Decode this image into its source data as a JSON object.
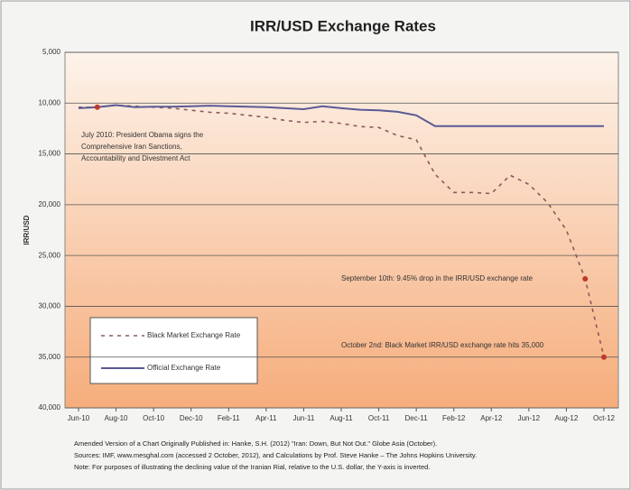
{
  "chart_data": {
    "type": "line",
    "title": "IRR/USD Exchange Rates",
    "y_label": "IRR/USD",
    "y_inverted": true,
    "grid": true,
    "legend_position": "lower left",
    "categories": [
      "Jun-10",
      null,
      "Aug-10",
      null,
      "Oct-10",
      null,
      "Dec-10",
      null,
      "Feb-11",
      null,
      "Apr-11",
      null,
      "Jun-11",
      null,
      "Aug-11",
      null,
      "Oct-11",
      null,
      "Dec-11",
      null,
      "Feb-12",
      null,
      "Apr-12",
      null,
      "Jun-12",
      null,
      "Aug-12",
      null,
      "Oct-12"
    ],
    "series": [
      {
        "name": "Black Market Exchange Rate",
        "color": "#8a5a5a",
        "dashed": true,
        "values": [
          10400,
          10400,
          10200,
          10300,
          10400,
          10500,
          10700,
          10900,
          11000,
          11200,
          11400,
          11700,
          11900,
          11800,
          12000,
          12300,
          12400,
          13200,
          13600,
          17000,
          18800,
          18800,
          18900,
          17100,
          18000,
          19800,
          22500,
          27300,
          35000
        ]
      },
      {
        "name": "Official Exchange Rate",
        "color": "#5a5a96",
        "dashed": false,
        "values": [
          10500,
          10400,
          10200,
          10400,
          10350,
          10350,
          10300,
          10250,
          10300,
          10350,
          10400,
          10500,
          10600,
          10300,
          10500,
          10650,
          10700,
          10850,
          11200,
          12260,
          12260,
          12260,
          12260,
          12260,
          12260,
          12260,
          12260,
          12260,
          12260
        ]
      }
    ],
    "ylim": [
      5000,
      40000
    ],
    "yticks": [
      {
        "value": 5000,
        "label": "5,000"
      },
      {
        "value": 10000,
        "label": "10,000"
      },
      {
        "value": 15000,
        "label": "15,000"
      },
      {
        "value": 20000,
        "label": "20,000"
      },
      {
        "value": 25000,
        "label": "25,000"
      },
      {
        "value": 30000,
        "label": "30,000"
      },
      {
        "value": 35000,
        "label": "35,000"
      },
      {
        "value": 40000,
        "label": "40,000"
      }
    ],
    "annotations": [
      {
        "lines": [
          "July 2010: President Obama signs the",
          "Comprehensive Iran Sanctions,",
          "Accountability and Divestment Act"
        ]
      },
      {
        "lines": [
          "September 10th: 9.45% drop in the IRR/USD exchange rate"
        ]
      },
      {
        "lines": [
          "October 2nd: Black Market IRR/USD exchange rate hits 35,000"
        ]
      }
    ],
    "marker_color": "#c0392b",
    "footnotes": [
      "Amended Version of a Chart Originally Published in: Hanke, S.H. (2012) \"Iran: Down, But Not Out.\" Globe Asia (October).",
      "Sources: IMF, www.mesghal.com (accessed 2 October, 2012), and Calculations by Prof. Steve Hanke – The Johns Hopkins University.",
      "Note: For purposes of illustrating the declining value of the Iranian Rial, relative to the U.S. dollar, the Y-axis is inverted."
    ]
  }
}
